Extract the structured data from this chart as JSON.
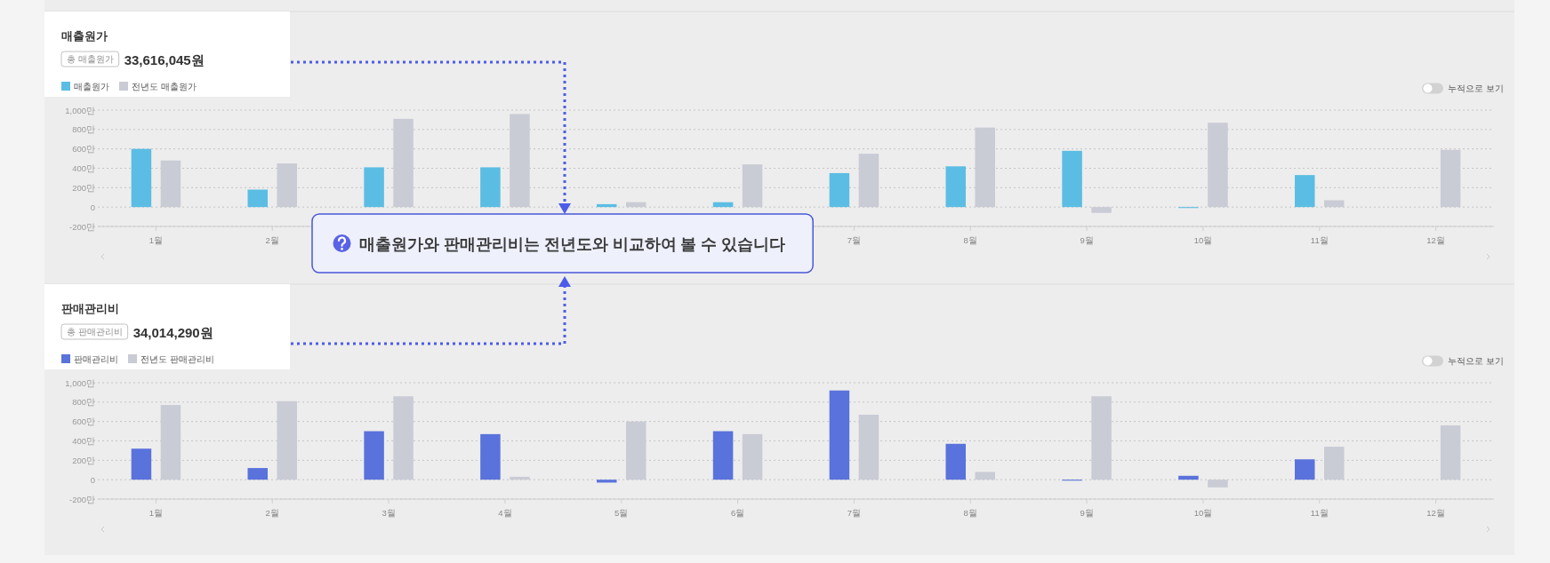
{
  "chart_data": [
    {
      "type": "bar",
      "title": "매출원가",
      "categories": [
        "1월",
        "2월",
        null,
        null,
        null,
        null,
        "7월",
        "8월",
        "9월",
        "10월",
        "11월",
        "12월"
      ],
      "series": [
        {
          "name": "매출원가",
          "color": "#5bbde3",
          "values": [
            600,
            180,
            410,
            410,
            30,
            50,
            350,
            420,
            580,
            -10,
            330,
            null
          ]
        },
        {
          "name": "전년도 매출원가",
          "color": "#c9cbd5",
          "values": [
            480,
            450,
            910,
            960,
            50,
            440,
            550,
            820,
            -60,
            870,
            70,
            590
          ]
        }
      ],
      "ylim": [
        -200,
        1000
      ],
      "yticks": [
        {
          "value": -200,
          "label": "-200만"
        },
        0,
        {
          "value": 200,
          "label": "200만"
        },
        {
          "value": 400,
          "label": "400만"
        },
        {
          "value": 600,
          "label": "600만"
        },
        {
          "value": 800,
          "label": "800만"
        },
        {
          "value": 1000,
          "label": "1,000만"
        }
      ],
      "grid": "y",
      "legend": "top left",
      "annotations": [
        "총 매출원가",
        "33,616,045원",
        "누적으로 보기",
        "매출원가와 판매관리비는 전년도와 비교하여 볼 수 있습니다"
      ]
    },
    {
      "type": "bar",
      "title": "판매관리비",
      "categories": [
        "1월",
        "2월",
        "3월",
        "4월",
        "5월",
        "6월",
        "7월",
        "8월",
        "9월",
        "10월",
        "11월",
        "12월"
      ],
      "series": [
        {
          "name": "판매관리비",
          "color": "#5a72dc",
          "values": [
            320,
            120,
            500,
            470,
            -30,
            500,
            920,
            370,
            -10,
            40,
            210,
            null
          ]
        },
        {
          "name": "전년도 판매관리비",
          "color": "#c9cbd5",
          "values": [
            770,
            810,
            860,
            30,
            600,
            470,
            670,
            80,
            860,
            -80,
            340,
            560
          ]
        }
      ],
      "ylim": [
        -200,
        1000
      ],
      "yticks": [
        {
          "value": -200,
          "label": "-200만"
        },
        0,
        {
          "value": 200,
          "label": "200만"
        },
        {
          "value": 400,
          "label": "400만"
        },
        {
          "value": 600,
          "label": "600만"
        },
        {
          "value": 800,
          "label": "800만"
        },
        {
          "value": 1000,
          "label": "1,000만"
        }
      ],
      "grid": "y",
      "legend": "top left",
      "annotations": [
        "총 판매관리비",
        "34,014,290원",
        "누적으로 보기"
      ]
    }
  ]
}
